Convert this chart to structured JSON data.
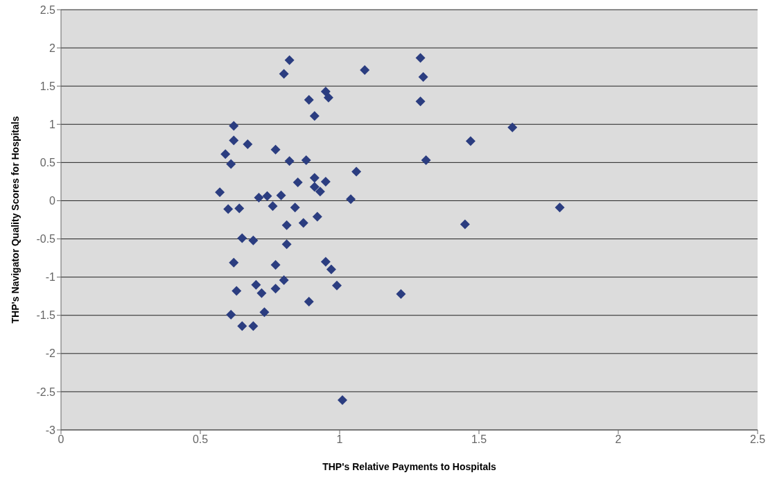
{
  "chart_data": {
    "type": "scatter",
    "xlabel": "THP's Relative Payments to Hospitals",
    "ylabel": "THP's Navigator Quality Scores for Hospitals",
    "x": [
      0.57,
      0.59,
      0.6,
      0.61,
      0.62,
      0.62,
      0.64,
      0.62,
      0.63,
      0.61,
      0.65,
      0.65,
      0.67,
      0.69,
      0.7,
      0.69,
      0.71,
      0.72,
      0.73,
      0.74,
      0.76,
      0.77,
      0.77,
      0.77,
      0.79,
      0.8,
      0.8,
      0.81,
      0.81,
      0.82,
      0.82,
      0.84,
      0.85,
      0.87,
      0.88,
      0.89,
      0.89,
      0.91,
      0.91,
      0.91,
      0.92,
      0.93,
      0.95,
      0.96,
      0.95,
      0.95,
      0.97,
      0.99,
      1.01,
      1.04,
      1.06,
      1.09,
      1.22,
      1.29,
      1.3,
      1.29,
      1.31,
      1.45,
      1.47,
      1.62,
      1.79
    ],
    "values": [
      0.11,
      0.61,
      -0.11,
      0.48,
      0.98,
      0.79,
      -0.1,
      -0.81,
      -1.18,
      -1.49,
      -0.49,
      -1.64,
      0.74,
      -0.52,
      -1.1,
      -1.64,
      0.04,
      -1.21,
      -1.46,
      0.06,
      -0.07,
      0.67,
      -0.84,
      -1.15,
      0.07,
      1.66,
      -1.04,
      -0.32,
      -0.57,
      0.52,
      1.84,
      -0.09,
      0.24,
      -0.29,
      0.53,
      1.32,
      -1.32,
      1.11,
      0.3,
      0.18,
      -0.21,
      0.12,
      1.43,
      1.35,
      0.25,
      -0.8,
      -0.9,
      -1.11,
      -2.61,
      0.02,
      0.38,
      1.71,
      -1.22,
      1.87,
      1.62,
      1.3,
      0.53,
      -0.31,
      0.78,
      0.96,
      -0.09
    ],
    "color": "#2b3d80",
    "marker": "diamond",
    "grid": "y",
    "xlim": [
      0,
      2.5
    ],
    "xticks": [
      0,
      0.5,
      1,
      1.5,
      2,
      2.5
    ],
    "ylim": [
      -3,
      2.5
    ],
    "yticks": [
      -3,
      -2.5,
      -2,
      -1.5,
      -1,
      -0.5,
      0,
      0.5,
      1,
      1.5,
      2,
      2.5
    ]
  }
}
